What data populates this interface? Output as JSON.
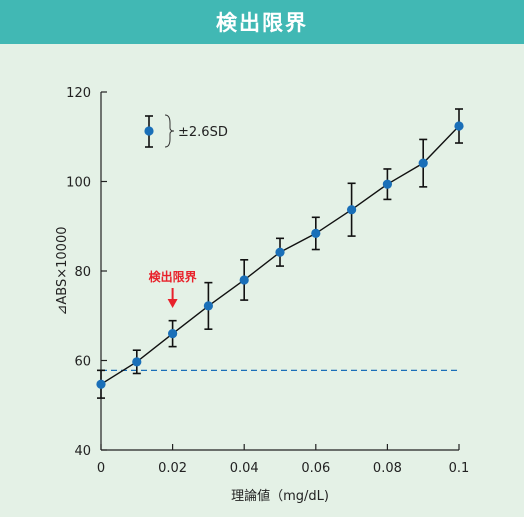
{
  "header": {
    "title": "検出限界"
  },
  "colors": {
    "header_bg": "#41b8b4",
    "panel_bg": "#e4f1e6",
    "point": "#1a6fb8",
    "line": "#111111",
    "threshold": "#1a6fb8",
    "annotation": "#e8222b"
  },
  "chart_data": {
    "type": "line",
    "xlabel": "理論値（mg/dL)",
    "ylabel": "⊿ABS×10000",
    "xlim": [
      0,
      0.1
    ],
    "ylim": [
      40,
      120
    ],
    "x_ticks": [
      "0",
      "0.02",
      "0.04",
      "0.06",
      "0.08",
      "0.1"
    ],
    "y_ticks": [
      "40",
      "60",
      "80",
      "100",
      "120"
    ],
    "grid": false,
    "series": [
      {
        "x": [
          0,
          0.01,
          0.02,
          0.03,
          0.04,
          0.05,
          0.06,
          0.07,
          0.08,
          0.09,
          0.1
        ],
        "values": [
          54.7,
          59.7,
          66.0,
          72.2,
          78.0,
          84.2,
          88.4,
          93.7,
          99.4,
          104.1,
          112.4
        ],
        "error": [
          3.1,
          2.6,
          2.9,
          5.2,
          4.5,
          3.1,
          3.6,
          5.9,
          3.4,
          5.3,
          3.8
        ]
      }
    ],
    "threshold": {
      "y": 57.8,
      "style": "dashed"
    },
    "legend": {
      "label": "±2.6SD",
      "position": "top-left"
    },
    "annotation": {
      "label": "検出限界",
      "x": 0.02
    }
  }
}
